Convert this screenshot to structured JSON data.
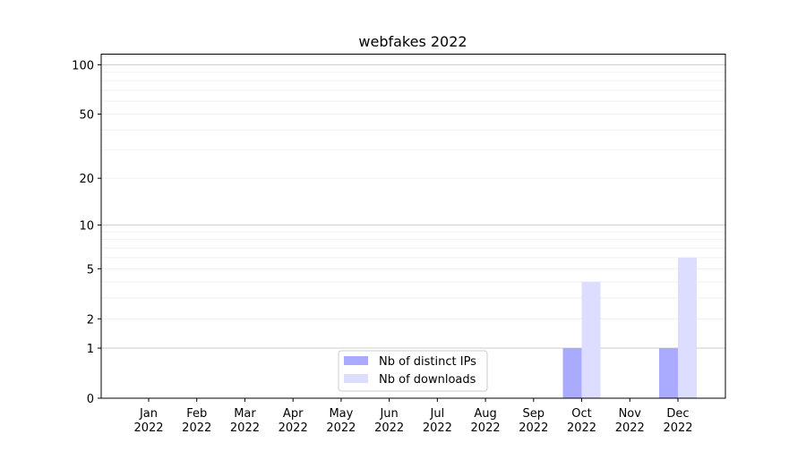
{
  "chart_data": {
    "type": "bar",
    "title": "webfakes 2022",
    "xlabel": "",
    "ylabel": "",
    "yscale": "log(1+y)",
    "ylim": [
      0,
      116
    ],
    "yticks": [
      0,
      1,
      2,
      5,
      10,
      20,
      50,
      100
    ],
    "grid": true,
    "legend_position": "bottom-center",
    "categories": [
      "Jan\n2022",
      "Feb\n2022",
      "Mar\n2022",
      "Apr\n2022",
      "May\n2022",
      "Jun\n2022",
      "Jul\n2022",
      "Aug\n2022",
      "Sep\n2022",
      "Oct\n2022",
      "Nov\n2022",
      "Dec\n2022"
    ],
    "series": [
      {
        "name": "Nb of distinct IPs",
        "color": "#aaaaff",
        "values": [
          0,
          0,
          0,
          0,
          0,
          0,
          0,
          0,
          0,
          1,
          0,
          1
        ]
      },
      {
        "name": "Nb of downloads",
        "color": "#ddddff",
        "values": [
          0,
          0,
          0,
          0,
          0,
          0,
          0,
          0,
          0,
          4,
          0,
          6
        ]
      }
    ]
  }
}
